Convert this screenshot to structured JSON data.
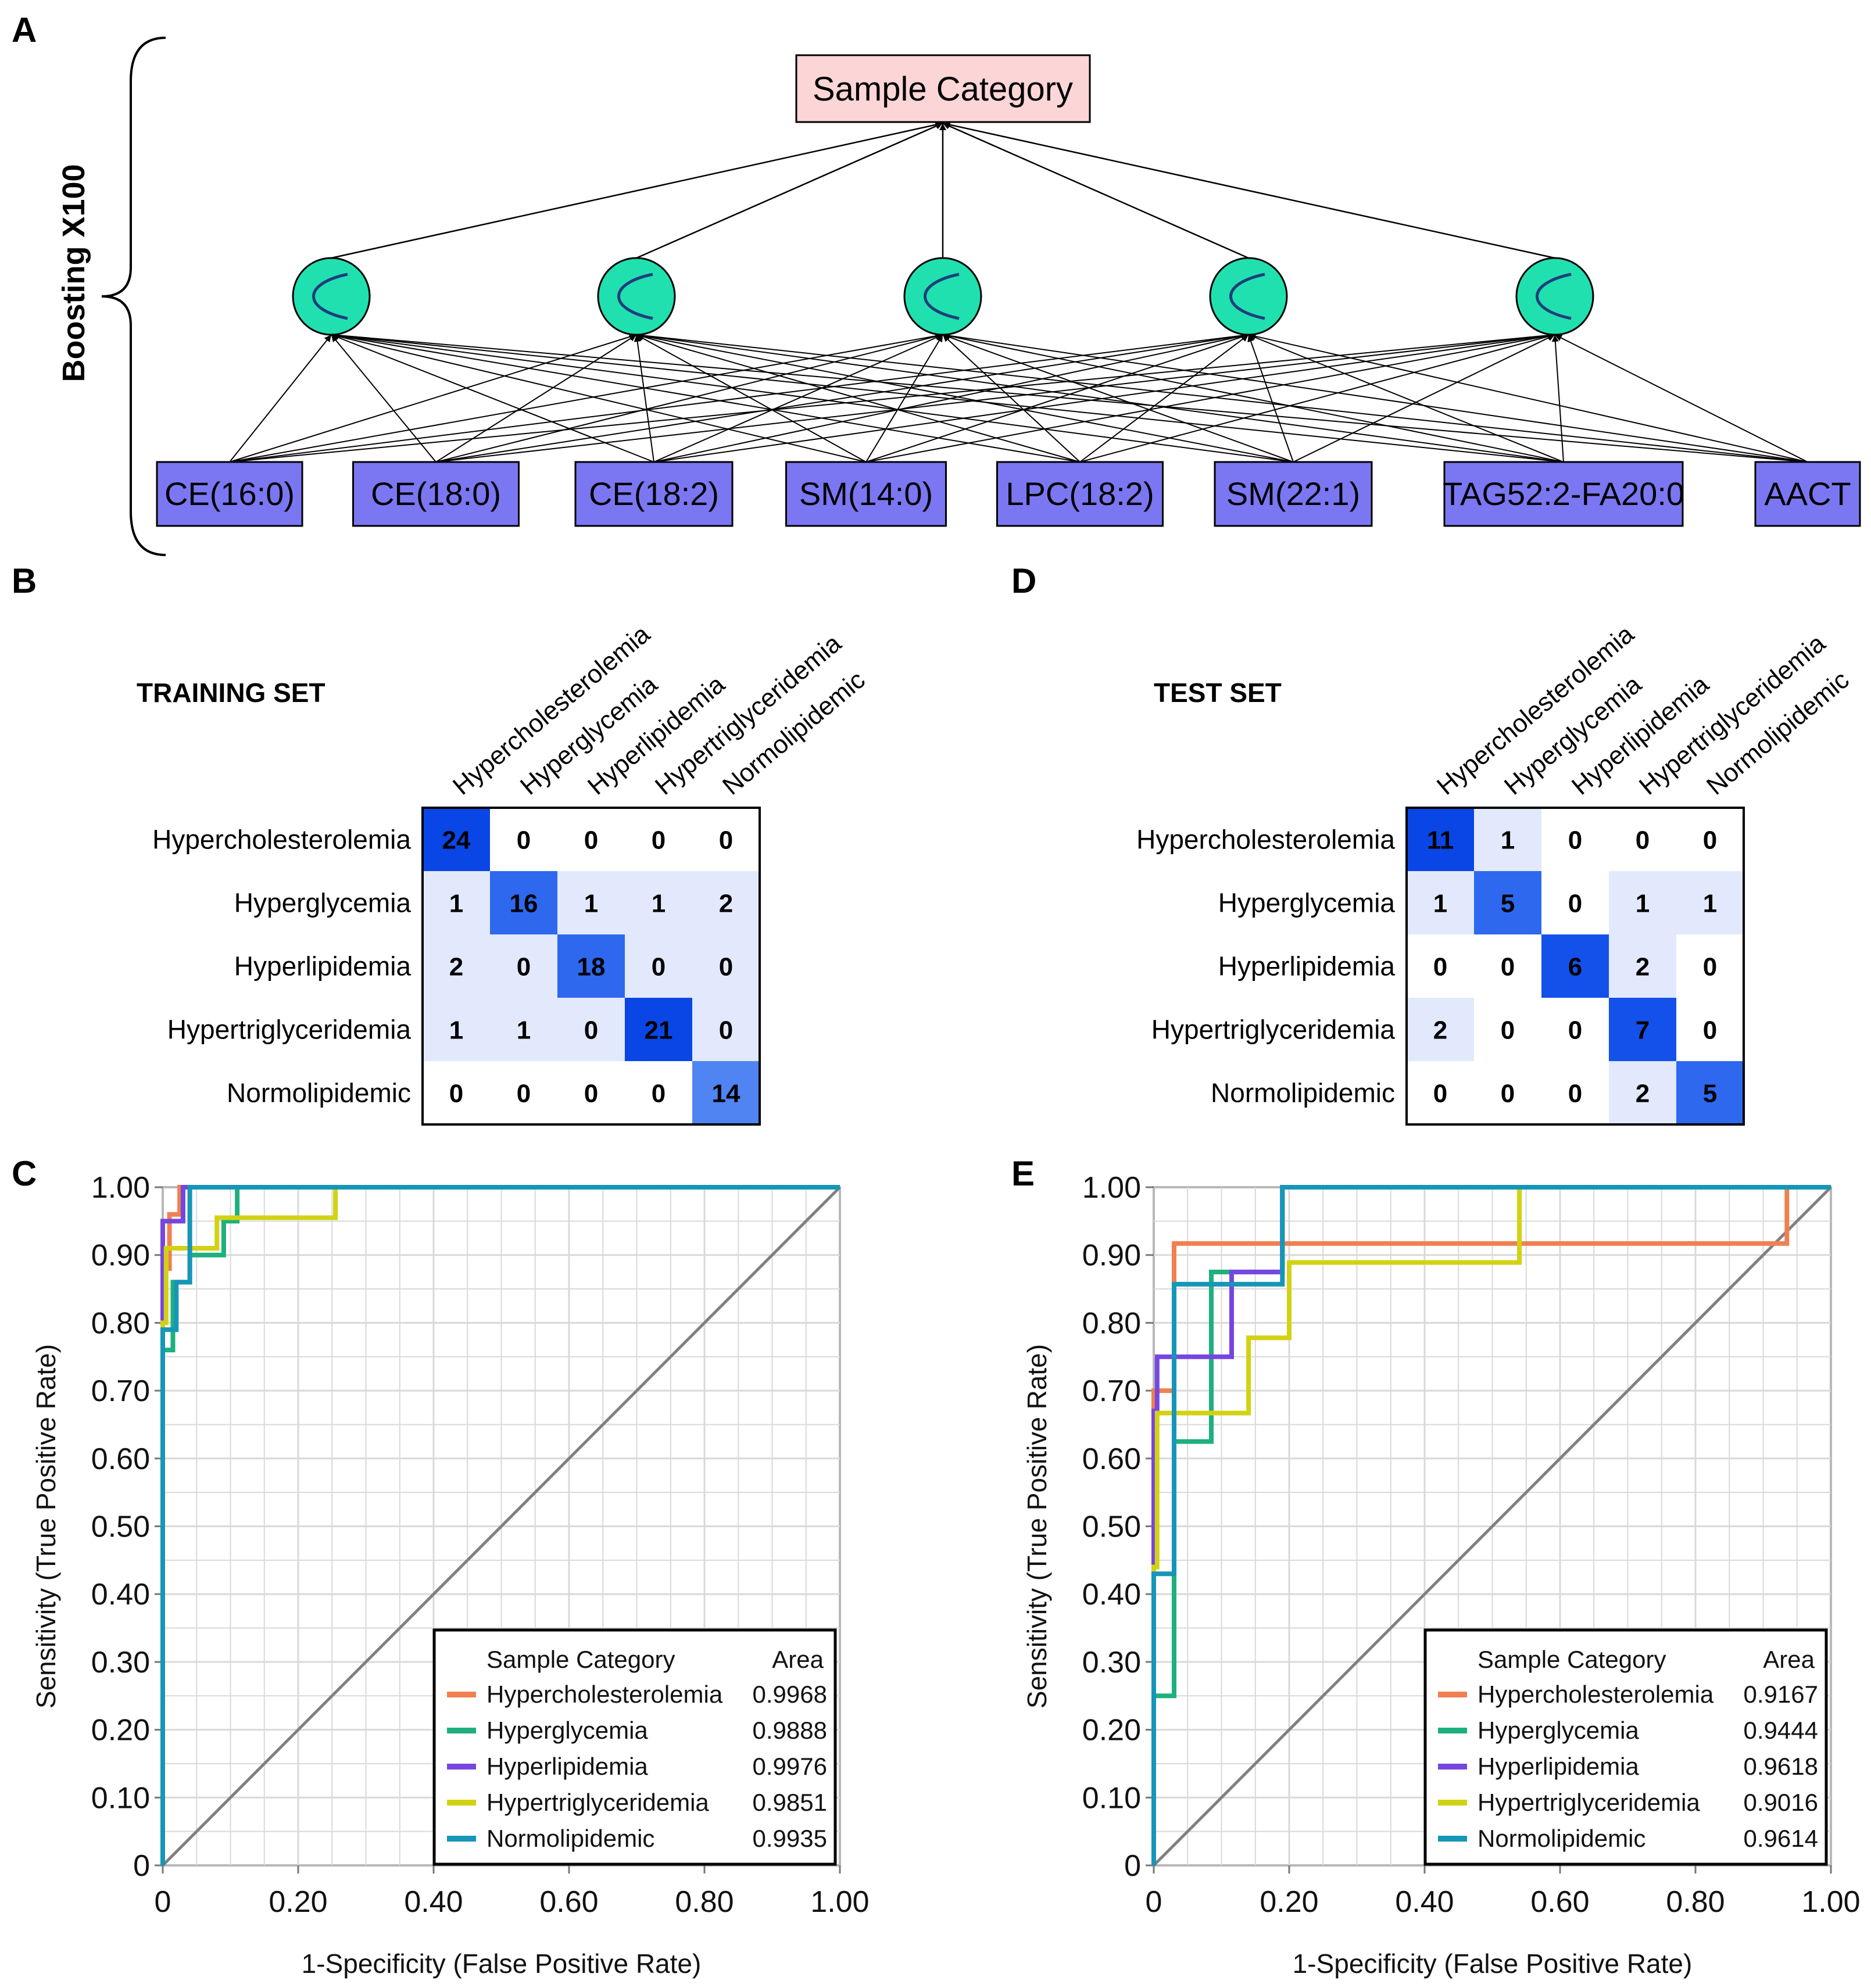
{
  "panel_labels": {
    "a": "A",
    "b": "B",
    "c": "C",
    "d": "D",
    "e": "E"
  },
  "network": {
    "boosting_label": "Boosting X100",
    "output_node": "Sample Category",
    "hidden_nodes": [
      "hidden-1",
      "hidden-2",
      "hidden-3",
      "hidden-4",
      "hidden-5"
    ],
    "hidden_icon": "sigmoid-icon",
    "inputs": [
      "CE(16:0)",
      "CE(18:0)",
      "CE(18:2)",
      "SM(14:0)",
      "LPC(18:2)",
      "SM(22:1)",
      "TAG52:2-FA20:0",
      "AACT"
    ]
  },
  "colors": {
    "output_fill": "#fcd6d6",
    "input_fill": "#7b77f2",
    "hidden_fill": "#20e0b0",
    "orange": "#f08050",
    "green": "#1eb07e",
    "purple": "#7646e0",
    "yellow": "#d2d214",
    "blue": "#1696b8",
    "diag": "#808080"
  },
  "chart_data": [
    {
      "type": "heatmap",
      "panel": "B",
      "title": "TRAINING SET",
      "rows": [
        "Hypercholesterolemia",
        "Hyperglycemia",
        "Hyperlipidemia",
        "Hypertriglyceridemia",
        "Normolipidemic"
      ],
      "cols": [
        "Hypercholesterolemia",
        "Hyperglycemia",
        "Hyperlipidemia",
        "Hypertriglyceridemia",
        "Normolipidemic"
      ],
      "values": [
        [
          24,
          0,
          0,
          0,
          0
        ],
        [
          1,
          16,
          1,
          1,
          2
        ],
        [
          2,
          0,
          18,
          0,
          0
        ],
        [
          1,
          1,
          0,
          21,
          0
        ],
        [
          0,
          0,
          0,
          0,
          14
        ]
      ]
    },
    {
      "type": "heatmap",
      "panel": "D",
      "title": "TEST SET",
      "rows": [
        "Hypercholesterolemia",
        "Hyperglycemia",
        "Hyperlipidemia",
        "Hypertriglyceridemia",
        "Normolipidemic"
      ],
      "cols": [
        "Hypercholesterolemia",
        "Hyperglycemia",
        "Hyperlipidemia",
        "Hypertriglyceridemia",
        "Normolipidemic"
      ],
      "values": [
        [
          11,
          1,
          0,
          0,
          0
        ],
        [
          1,
          5,
          0,
          1,
          1
        ],
        [
          0,
          0,
          6,
          2,
          0
        ],
        [
          2,
          0,
          0,
          7,
          0
        ],
        [
          0,
          0,
          0,
          2,
          5
        ]
      ]
    },
    {
      "type": "line",
      "panel": "C",
      "xlabel": "1-Specificity (False Positive Rate)",
      "ylabel": "Sensitivity (True Positive Rate)",
      "xlim": [
        0,
        1
      ],
      "ylim": [
        0,
        1
      ],
      "xticks": [
        "0",
        "0.20",
        "0.40",
        "0.60",
        "0.80",
        "1.00"
      ],
      "yticks": [
        "0",
        "0.10",
        "0.20",
        "0.30",
        "0.40",
        "0.50",
        "0.60",
        "0.70",
        "0.80",
        "0.90",
        "1.00"
      ],
      "legend": {
        "header_category": "Sample Category",
        "header_area": "Area",
        "position": "bottom-right"
      },
      "series": [
        {
          "name": "Hypercholesterolemia",
          "area": "0.9968",
          "color": "orange",
          "points": [
            [
              0,
              0
            ],
            [
              0,
              0.88
            ],
            [
              0.01,
              0.88
            ],
            [
              0.01,
              0.96
            ],
            [
              0.025,
              0.96
            ],
            [
              0.025,
              1
            ],
            [
              1,
              1
            ]
          ]
        },
        {
          "name": "Hyperglycemia",
          "area": "0.9888",
          "color": "green",
          "points": [
            [
              0,
              0
            ],
            [
              0,
              0.76
            ],
            [
              0.015,
              0.76
            ],
            [
              0.015,
              0.86
            ],
            [
              0.04,
              0.86
            ],
            [
              0.04,
              0.9
            ],
            [
              0.09,
              0.9
            ],
            [
              0.09,
              0.95
            ],
            [
              0.11,
              0.95
            ],
            [
              0.11,
              1
            ],
            [
              1,
              1
            ]
          ]
        },
        {
          "name": "Hyperlipidemia",
          "area": "0.9976",
          "color": "purple",
          "points": [
            [
              0,
              0
            ],
            [
              0,
              0.95
            ],
            [
              0.03,
              0.95
            ],
            [
              0.03,
              1
            ],
            [
              1,
              1
            ]
          ]
        },
        {
          "name": "Hypertriglyceridemia",
          "area": "0.9851",
          "color": "yellow",
          "points": [
            [
              0,
              0
            ],
            [
              0,
              0.8
            ],
            [
              0.005,
              0.8
            ],
            [
              0.005,
              0.91
            ],
            [
              0.08,
              0.91
            ],
            [
              0.08,
              0.955
            ],
            [
              0.255,
              0.955
            ],
            [
              0.255,
              1
            ],
            [
              1,
              1
            ]
          ]
        },
        {
          "name": "Normolipidemic",
          "area": "0.9935",
          "color": "blue",
          "points": [
            [
              0,
              0
            ],
            [
              0,
              0.79
            ],
            [
              0.02,
              0.79
            ],
            [
              0.02,
              0.86
            ],
            [
              0.04,
              0.86
            ],
            [
              0.04,
              1
            ],
            [
              1,
              1
            ]
          ]
        }
      ]
    },
    {
      "type": "line",
      "panel": "E",
      "xlabel": "1-Specificity (False Positive Rate)",
      "ylabel": "Sensitivity (True Positive Rate)",
      "xlim": [
        0,
        1
      ],
      "ylim": [
        0,
        1
      ],
      "xticks": [
        "0",
        "0.20",
        "0.40",
        "0.60",
        "0.80",
        "1.00"
      ],
      "yticks": [
        "0",
        "0.10",
        "0.20",
        "0.30",
        "0.40",
        "0.50",
        "0.60",
        "0.70",
        "0.80",
        "0.90",
        "1.00"
      ],
      "legend": {
        "header_category": "Sample Category",
        "header_area": "Area",
        "position": "bottom-right"
      },
      "series": [
        {
          "name": "Hypercholesterolemia",
          "area": "0.9167",
          "color": "orange",
          "points": [
            [
              0,
              0
            ],
            [
              0,
              0.7
            ],
            [
              0.03,
              0.7
            ],
            [
              0.03,
              0.917
            ],
            [
              0.935,
              0.917
            ],
            [
              0.935,
              1
            ],
            [
              1,
              1
            ]
          ]
        },
        {
          "name": "Hyperglycemia",
          "area": "0.9444",
          "color": "green",
          "points": [
            [
              0,
              0
            ],
            [
              0,
              0.25
            ],
            [
              0.03,
              0.25
            ],
            [
              0.03,
              0.625
            ],
            [
              0.085,
              0.625
            ],
            [
              0.085,
              0.875
            ],
            [
              0.19,
              0.875
            ],
            [
              0.19,
              1
            ],
            [
              1,
              1
            ]
          ]
        },
        {
          "name": "Hyperlipidemia",
          "area": "0.9618",
          "color": "purple",
          "points": [
            [
              0,
              0
            ],
            [
              0,
              0.67
            ],
            [
              0.005,
              0.67
            ],
            [
              0.005,
              0.75
            ],
            [
              0.115,
              0.75
            ],
            [
              0.115,
              0.875
            ],
            [
              0.19,
              0.875
            ],
            [
              0.19,
              1
            ],
            [
              1,
              1
            ]
          ]
        },
        {
          "name": "Hypertriglyceridemia",
          "area": "0.9016",
          "color": "yellow",
          "points": [
            [
              0,
              0
            ],
            [
              0,
              0.44
            ],
            [
              0.005,
              0.44
            ],
            [
              0.005,
              0.667
            ],
            [
              0.14,
              0.667
            ],
            [
              0.14,
              0.778
            ],
            [
              0.2,
              0.778
            ],
            [
              0.2,
              0.889
            ],
            [
              0.54,
              0.889
            ],
            [
              0.54,
              1
            ],
            [
              1,
              1
            ]
          ]
        },
        {
          "name": "Normolipidemic",
          "area": "0.9614",
          "color": "blue",
          "points": [
            [
              0,
              0
            ],
            [
              0,
              0.43
            ],
            [
              0.03,
              0.43
            ],
            [
              0.03,
              0.857
            ],
            [
              0.19,
              0.857
            ],
            [
              0.19,
              1
            ],
            [
              1,
              1
            ]
          ]
        }
      ]
    }
  ]
}
